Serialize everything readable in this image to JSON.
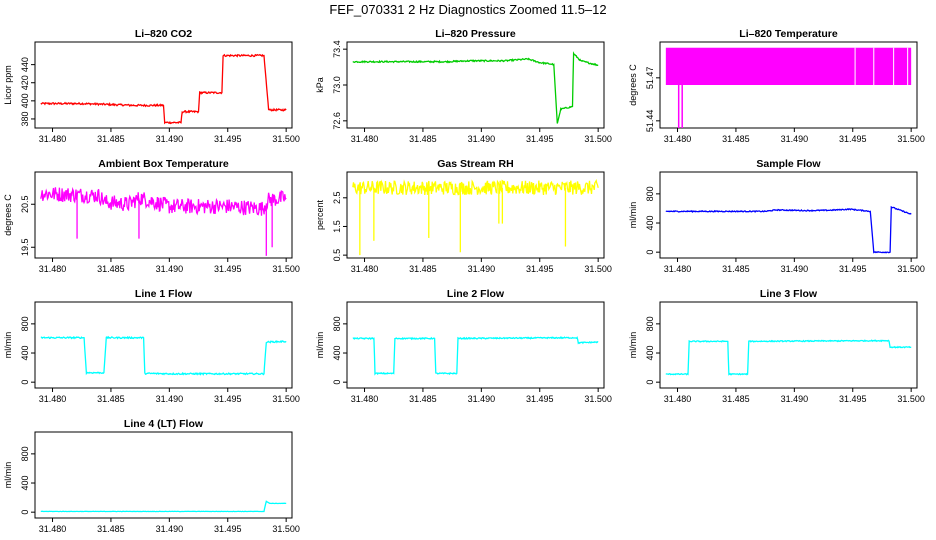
{
  "page_title": "FEF_070331  2 Hz Diagnostics Zoomed 11.5–12",
  "x_ticks": [
    "31.480",
    "31.485",
    "31.490",
    "31.495",
    "31.500"
  ],
  "chart_data": [
    {
      "type": "line",
      "title": "Li–820 CO2",
      "ylabel": "Licor ppm",
      "color": "#ff0000",
      "xlim": [
        31.4785,
        31.5005
      ],
      "ylim": [
        370,
        465
      ],
      "y_ticks": [
        380,
        400,
        420,
        440
      ],
      "y_tick_labels": [
        "380",
        "400",
        "420",
        "440"
      ],
      "noise": 1,
      "points": [
        [
          31.479,
          397
        ],
        [
          31.4825,
          397
        ],
        [
          31.487,
          395
        ],
        [
          31.4895,
          395
        ],
        [
          31.4896,
          376
        ],
        [
          31.491,
          376
        ],
        [
          31.4911,
          388
        ],
        [
          31.4925,
          388
        ],
        [
          31.4926,
          409
        ],
        [
          31.4945,
          409
        ],
        [
          31.4946,
          450
        ],
        [
          31.4981,
          450
        ],
        [
          31.4985,
          390
        ],
        [
          31.5,
          390
        ]
      ]
    },
    {
      "type": "line",
      "title": "Li–820 Pressure",
      "ylabel": "kPa",
      "color": "#00cc00",
      "xlim": [
        31.4785,
        31.5005
      ],
      "ylim": [
        72.52,
        73.48
      ],
      "y_ticks": [
        72.6,
        73.0,
        73.4
      ],
      "y_tick_labels": [
        "72.6",
        "73.0",
        "73.4"
      ],
      "noise": 0.008,
      "points": [
        [
          31.479,
          73.26
        ],
        [
          31.487,
          73.26
        ],
        [
          31.489,
          73.27
        ],
        [
          31.492,
          73.27
        ],
        [
          31.494,
          73.29
        ],
        [
          31.495,
          73.25
        ],
        [
          31.4962,
          73.23
        ],
        [
          31.4965,
          72.57
        ],
        [
          31.4968,
          72.73
        ],
        [
          31.4978,
          72.76
        ],
        [
          31.4979,
          73.35
        ],
        [
          31.4985,
          73.27
        ],
        [
          31.5,
          73.22
        ]
      ]
    },
    {
      "type": "area",
      "title": "Li–820 Temperature",
      "ylabel": "degrees C",
      "color": "#ff00ff",
      "xlim": [
        31.4785,
        31.5005
      ],
      "ylim": [
        51.435,
        51.495
      ],
      "y_ticks": [
        51.44,
        51.47
      ],
      "y_tick_labels": [
        "51.44",
        "51.47"
      ],
      "band_low": 51.465,
      "band_high": 51.491,
      "band_start": 31.479,
      "band_end": 31.5,
      "gaps": [
        31.4968,
        31.4997,
        31.4952,
        31.4985
      ],
      "spikes": [
        [
          31.4801,
          51.435
        ],
        [
          31.4804,
          51.435
        ]
      ]
    },
    {
      "type": "line",
      "title": "Ambient Box Temperature",
      "ylabel": "degrees C",
      "color": "#ff00ff",
      "xlim": [
        31.4785,
        31.5005
      ],
      "ylim": [
        19.25,
        21.25
      ],
      "y_ticks": [
        19.5,
        20.5
      ],
      "y_tick_labels": [
        "19.5",
        "20.5"
      ],
      "noise": 0.18,
      "points": [
        [
          31.479,
          20.75
        ],
        [
          31.484,
          20.7
        ],
        [
          31.4845,
          20.55
        ],
        [
          31.4865,
          20.5
        ],
        [
          31.4875,
          20.65
        ],
        [
          31.49,
          20.45
        ],
        [
          31.495,
          20.45
        ],
        [
          31.498,
          20.4
        ],
        [
          31.4985,
          20.6
        ],
        [
          31.5,
          20.65
        ]
      ],
      "spikes": [
        [
          31.4821,
          19.7
        ],
        [
          31.4874,
          19.7
        ],
        [
          31.4983,
          19.3
        ],
        [
          31.4988,
          19.5
        ]
      ]
    },
    {
      "type": "line",
      "title": "Gas Stream RH",
      "ylabel": "percent",
      "color": "#ffff00",
      "xlim": [
        31.4785,
        31.5005
      ],
      "ylim": [
        0.4,
        3.4
      ],
      "y_ticks": [
        0.5,
        1.5,
        2.5
      ],
      "y_tick_labels": [
        "0.5",
        "1.5",
        "2.5"
      ],
      "noise": 0.25,
      "points": [
        [
          31.479,
          2.85
        ],
        [
          31.5,
          2.85
        ]
      ],
      "spikes": [
        [
          31.4796,
          0.5
        ],
        [
          31.4808,
          1.0
        ],
        [
          31.4855,
          1.1
        ],
        [
          31.4882,
          0.6
        ],
        [
          31.4915,
          1.6
        ],
        [
          31.4918,
          1.6
        ],
        [
          31.4972,
          0.8
        ]
      ]
    },
    {
      "type": "line",
      "title": "Sample Flow",
      "ylabel": "ml/min",
      "color": "#0000ff",
      "xlim": [
        31.4785,
        31.5005
      ],
      "ylim": [
        -80,
        1100
      ],
      "y_ticks": [
        0,
        400,
        800
      ],
      "y_tick_labels": [
        "0",
        "400",
        "800"
      ],
      "noise": 7,
      "points": [
        [
          31.479,
          560
        ],
        [
          31.4875,
          560
        ],
        [
          31.4885,
          580
        ],
        [
          31.491,
          570
        ],
        [
          31.493,
          575
        ],
        [
          31.4948,
          590
        ],
        [
          31.4965,
          560
        ],
        [
          31.4968,
          0
        ],
        [
          31.4982,
          0
        ],
        [
          31.4983,
          620
        ],
        [
          31.5,
          520
        ]
      ]
    },
    {
      "type": "line",
      "title": "Line 1 Flow",
      "ylabel": "ml/min",
      "color": "#00ffff",
      "xlim": [
        31.4785,
        31.5005
      ],
      "ylim": [
        -80,
        1100
      ],
      "y_ticks": [
        0,
        400,
        800
      ],
      "y_tick_labels": [
        "0",
        "400",
        "800"
      ],
      "noise": 10,
      "points": [
        [
          31.479,
          610
        ],
        [
          31.4827,
          610
        ],
        [
          31.4829,
          130
        ],
        [
          31.4844,
          130
        ],
        [
          31.4846,
          610
        ],
        [
          31.4878,
          610
        ],
        [
          31.4879,
          120
        ],
        [
          31.4905,
          115
        ],
        [
          31.4981,
          115
        ],
        [
          31.4983,
          550
        ],
        [
          31.5,
          560
        ]
      ]
    },
    {
      "type": "line",
      "title": "Line 2 Flow",
      "ylabel": "ml/min",
      "color": "#00ffff",
      "xlim": [
        31.4785,
        31.5005
      ],
      "ylim": [
        -80,
        1100
      ],
      "y_ticks": [
        0,
        400,
        800
      ],
      "y_tick_labels": [
        "0",
        "400",
        "800"
      ],
      "noise": 8,
      "points": [
        [
          31.479,
          600
        ],
        [
          31.4808,
          600
        ],
        [
          31.4809,
          120
        ],
        [
          31.4825,
          120
        ],
        [
          31.4826,
          600
        ],
        [
          31.486,
          600
        ],
        [
          31.4861,
          120
        ],
        [
          31.4879,
          120
        ],
        [
          31.488,
          600
        ],
        [
          31.4982,
          610
        ],
        [
          31.4983,
          540
        ],
        [
          31.5,
          550
        ]
      ]
    },
    {
      "type": "line",
      "title": "Line 3 Flow",
      "ylabel": "ml/min",
      "color": "#00ffff",
      "xlim": [
        31.4785,
        31.5005
      ],
      "ylim": [
        -80,
        1100
      ],
      "y_ticks": [
        0,
        400,
        800
      ],
      "y_tick_labels": [
        "0",
        "400",
        "800"
      ],
      "noise": 7,
      "points": [
        [
          31.479,
          110
        ],
        [
          31.4809,
          110
        ],
        [
          31.481,
          560
        ],
        [
          31.4843,
          560
        ],
        [
          31.4844,
          110
        ],
        [
          31.486,
          110
        ],
        [
          31.4861,
          560
        ],
        [
          31.4981,
          570
        ],
        [
          31.4982,
          480
        ],
        [
          31.5,
          480
        ]
      ]
    },
    {
      "type": "line",
      "title": "Line 4 (LT) Flow",
      "ylabel": "ml/min",
      "color": "#00ffff",
      "xlim": [
        31.4785,
        31.5005
      ],
      "ylim": [
        -80,
        1100
      ],
      "y_ticks": [
        0,
        400,
        800
      ],
      "y_tick_labels": [
        "0",
        "400",
        "800"
      ],
      "noise": 2,
      "points": [
        [
          31.479,
          10
        ],
        [
          31.4981,
          10
        ],
        [
          31.4983,
          150
        ],
        [
          31.4986,
          120
        ],
        [
          31.5,
          120
        ]
      ]
    }
  ]
}
